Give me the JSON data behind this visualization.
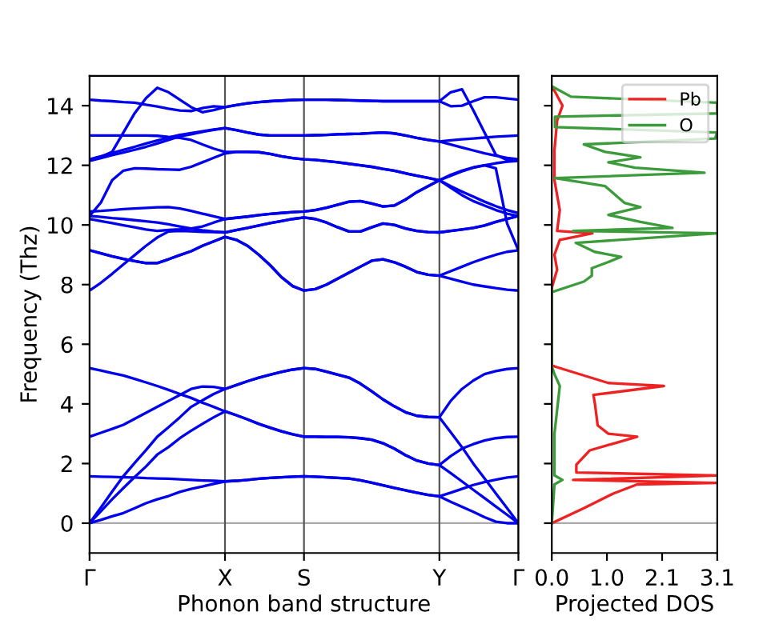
{
  "chart_data": [
    {
      "type": "line",
      "xlabel": "Phonon band structure",
      "ylabel": "Frequency (Thz)",
      "categories": [
        "Γ",
        null,
        null,
        null,
        null,
        null,
        null,
        null,
        null,
        null,
        null,
        null,
        "X",
        null,
        null,
        null,
        null,
        null,
        null,
        "S",
        null,
        null,
        null,
        null,
        null,
        null,
        null,
        null,
        null,
        null,
        null,
        "Y",
        null,
        null,
        null,
        null,
        null,
        null,
        "Γ"
      ],
      "ylim": [
        -1,
        15
      ],
      "yticks": [
        0,
        2,
        4,
        6,
        8,
        10,
        12,
        14
      ],
      "grid": "x",
      "line_style": "solid",
      "ref_lines": [
        {
          "axis": "y",
          "value": 0,
          "color": "#aaaaaa"
        }
      ],
      "series": [
        {
          "color": "#0000ee",
          "values": [
            0,
            0.11,
            0.23,
            0.34,
            0.5,
            0.67,
            0.8,
            0.91,
            1.05,
            1.15,
            1.23,
            1.32,
            1.4,
            1.42,
            1.45,
            1.49,
            1.52,
            1.54,
            1.56,
            1.57,
            1.56,
            1.54,
            1.52,
            1.5,
            1.44,
            1.36,
            1.27,
            1.18,
            1.1,
            1.02,
            0.95,
            0.9,
            0.72,
            0.55,
            0.38,
            0.2,
            0.05,
            0,
            0
          ]
        },
        {
          "color": "#0000ee",
          "values": [
            1.57,
            1.56,
            1.55,
            1.54,
            1.53,
            1.51,
            1.5,
            1.49,
            1.47,
            1.45,
            1.43,
            1.42,
            1.4,
            1.42,
            1.45,
            1.49,
            1.52,
            1.54,
            1.56,
            1.57,
            1.56,
            1.54,
            1.52,
            1.5,
            1.44,
            1.36,
            1.27,
            1.18,
            1.1,
            1.02,
            0.95,
            0.9,
            1.02,
            1.15,
            1.28,
            1.38,
            1.46,
            1.53,
            1.57
          ]
        },
        {
          "color": "#0000ee",
          "values": [
            0,
            0.4,
            0.8,
            1.18,
            1.55,
            1.9,
            2.3,
            2.55,
            2.85,
            3.1,
            3.33,
            3.55,
            3.75,
            3.62,
            3.48,
            3.33,
            3.2,
            3.08,
            2.98,
            2.9,
            2.9,
            2.89,
            2.89,
            2.88,
            2.85,
            2.8,
            2.68,
            2.5,
            2.28,
            2.1,
            2.0,
            1.95,
            1.68,
            1.4,
            1.12,
            0.84,
            0.56,
            0.28,
            0
          ]
        },
        {
          "color": "#0000ee",
          "values": [
            5.2,
            5.12,
            5.03,
            4.95,
            4.84,
            4.72,
            4.6,
            4.47,
            4.33,
            4.2,
            4.04,
            3.9,
            3.75,
            3.62,
            3.48,
            3.33,
            3.2,
            3.08,
            2.98,
            2.9,
            2.9,
            2.89,
            2.89,
            2.88,
            2.85,
            2.8,
            2.68,
            2.5,
            2.28,
            2.1,
            2.0,
            1.95,
            2.25,
            2.5,
            2.65,
            2.77,
            2.85,
            2.89,
            2.9
          ]
        },
        {
          "color": "#0000ee",
          "values": [
            0,
            0.52,
            1.06,
            1.58,
            2.02,
            2.45,
            2.9,
            3.22,
            3.55,
            3.9,
            4.12,
            4.33,
            4.5,
            4.63,
            4.76,
            4.88,
            4.98,
            5.07,
            5.15,
            5.2,
            5.17,
            5.08,
            4.98,
            4.88,
            4.68,
            4.42,
            4.15,
            3.92,
            3.72,
            3.6,
            3.56,
            3.55,
            3.05,
            2.55,
            2.0,
            1.5,
            1.0,
            0.5,
            0
          ]
        },
        {
          "color": "#0000ee",
          "values": [
            2.9,
            3.03,
            3.16,
            3.3,
            3.5,
            3.7,
            3.9,
            4.1,
            4.3,
            4.5,
            4.58,
            4.57,
            4.5,
            4.63,
            4.76,
            4.88,
            4.98,
            5.07,
            5.15,
            5.2,
            5.17,
            5.08,
            4.98,
            4.88,
            4.68,
            4.42,
            4.15,
            3.92,
            3.72,
            3.6,
            3.56,
            3.55,
            4.1,
            4.5,
            4.78,
            5.0,
            5.1,
            5.17,
            5.2
          ]
        },
        {
          "color": "#0000ee",
          "values": [
            7.8,
            8.06,
            8.36,
            8.68,
            8.99,
            9.3,
            9.58,
            9.78,
            9.8,
            9.79,
            9.77,
            9.76,
            9.75,
            9.83,
            9.9,
            9.98,
            10.06,
            10.13,
            10.2,
            10.25,
            10.2,
            10.08,
            9.92,
            9.78,
            9.78,
            9.92,
            10.05,
            10.0,
            9.88,
            9.8,
            9.76,
            9.75,
            9.8,
            9.85,
            9.9,
            9.98,
            10.1,
            10.2,
            10.3
          ]
        },
        {
          "color": "#0000ee",
          "values": [
            10.3,
            10.27,
            10.23,
            10.2,
            10.16,
            10.12,
            10.08,
            10.02,
            9.95,
            9.88,
            9.82,
            9.78,
            9.75,
            9.83,
            9.9,
            9.98,
            10.06,
            10.13,
            10.2,
            10.25,
            10.2,
            10.08,
            9.92,
            9.78,
            9.78,
            9.92,
            10.05,
            10.0,
            9.88,
            9.8,
            9.76,
            9.75,
            9.8,
            9.85,
            9.9,
            9.98,
            10.1,
            10.2,
            10.3
          ]
        },
        {
          "color": "#0000ee",
          "values": [
            9.15,
            9.05,
            8.95,
            8.86,
            8.79,
            8.72,
            8.72,
            8.85,
            8.99,
            9.12,
            9.3,
            9.45,
            9.6,
            9.5,
            9.3,
            9.0,
            8.65,
            8.25,
            7.95,
            7.8,
            7.85,
            8.0,
            8.2,
            8.4,
            8.6,
            8.8,
            8.85,
            8.75,
            8.6,
            8.42,
            8.33,
            8.3,
            8.2,
            8.1,
            8.0,
            7.94,
            7.88,
            7.83,
            7.8
          ]
        },
        {
          "color": "#0000ee",
          "values": [
            9.15,
            9.05,
            8.95,
            8.86,
            8.79,
            8.72,
            8.72,
            8.85,
            8.99,
            9.12,
            9.3,
            9.45,
            9.6,
            9.5,
            9.3,
            9.0,
            8.65,
            8.25,
            7.95,
            7.8,
            7.85,
            8.0,
            8.2,
            8.4,
            8.6,
            8.8,
            8.85,
            8.75,
            8.6,
            8.42,
            8.33,
            8.3,
            8.45,
            8.6,
            8.75,
            8.88,
            9.0,
            9.1,
            9.15
          ]
        },
        {
          "color": "#0000ee",
          "values": [
            10.2,
            10.13,
            10.06,
            9.99,
            9.92,
            9.85,
            9.8,
            9.83,
            9.85,
            9.88,
            9.95,
            10.08,
            10.2,
            10.24,
            10.28,
            10.33,
            10.37,
            10.4,
            10.43,
            10.45,
            10.5,
            10.58,
            10.68,
            10.78,
            10.8,
            10.72,
            10.62,
            10.65,
            10.85,
            11.1,
            11.3,
            11.5,
            11.3,
            11.12,
            10.95,
            10.78,
            10.63,
            10.5,
            10.4
          ]
        },
        {
          "color": "#0000ee",
          "values": [
            10.45,
            10.47,
            10.5,
            10.53,
            10.55,
            10.57,
            10.59,
            10.6,
            10.55,
            10.47,
            10.38,
            10.29,
            10.2,
            10.24,
            10.28,
            10.33,
            10.37,
            10.4,
            10.43,
            10.45,
            10.5,
            10.58,
            10.68,
            10.78,
            10.8,
            10.72,
            10.62,
            10.65,
            10.85,
            11.1,
            11.3,
            11.5,
            11.25,
            11.0,
            10.8,
            10.65,
            10.5,
            10.38,
            10.3
          ]
        },
        {
          "color": "#0000ee",
          "values": [
            10.3,
            10.75,
            11.5,
            11.82,
            11.9,
            11.89,
            11.87,
            11.86,
            11.85,
            11.95,
            12.1,
            12.25,
            12.4,
            12.45,
            12.45,
            12.44,
            12.38,
            12.3,
            12.24,
            12.2,
            12.18,
            12.14,
            12.1,
            12.05,
            12.0,
            11.95,
            11.88,
            11.82,
            11.73,
            11.65,
            11.58,
            11.5,
            11.65,
            11.8,
            11.92,
            12.0,
            11.9,
            10.05,
            9.15
          ]
        },
        {
          "color": "#0000ee",
          "values": [
            13.0,
            13.0,
            13.0,
            13.0,
            13.0,
            13.0,
            12.99,
            12.95,
            12.92,
            12.85,
            12.7,
            12.56,
            12.45,
            12.45,
            12.45,
            12.44,
            12.38,
            12.3,
            12.24,
            12.2,
            12.18,
            12.14,
            12.1,
            12.05,
            12.0,
            11.95,
            11.88,
            11.82,
            11.73,
            11.65,
            11.58,
            11.5,
            11.68,
            11.82,
            11.93,
            12.0,
            12.07,
            12.12,
            12.15
          ]
        },
        {
          "color": "#0000ee",
          "values": [
            12.2,
            12.3,
            12.41,
            12.52,
            12.62,
            12.73,
            12.83,
            12.93,
            13.02,
            13.08,
            13.14,
            13.2,
            13.25,
            13.18,
            13.1,
            13.03,
            13.0,
            13.0,
            13.0,
            13.0,
            13.01,
            13.02,
            13.04,
            13.05,
            13.06,
            13.08,
            13.1,
            13.07,
            13.0,
            12.92,
            12.85,
            12.8,
            12.7,
            12.6,
            12.5,
            12.4,
            12.32,
            12.25,
            12.2
          ]
        },
        {
          "color": "#0000ee",
          "values": [
            12.15,
            12.24,
            12.34,
            12.43,
            12.52,
            12.62,
            12.73,
            12.85,
            12.97,
            13.04,
            13.12,
            13.19,
            13.25,
            13.18,
            13.1,
            13.03,
            13.0,
            13.0,
            13.0,
            13.0,
            13.01,
            13.02,
            13.04,
            13.05,
            13.06,
            13.08,
            13.1,
            13.07,
            13.0,
            12.92,
            12.85,
            12.8,
            12.84,
            12.87,
            12.9,
            12.93,
            12.96,
            12.98,
            13.0
          ]
        },
        {
          "color": "#0000ee",
          "values": [
            12.15,
            12.28,
            12.45,
            13.1,
            13.75,
            14.25,
            14.6,
            14.45,
            14.2,
            13.95,
            13.78,
            13.85,
            13.95,
            14.02,
            14.08,
            14.12,
            14.15,
            14.17,
            14.19,
            14.2,
            14.2,
            14.2,
            14.19,
            14.18,
            14.17,
            14.16,
            14.15,
            14.15,
            14.15,
            14.15,
            14.15,
            14.15,
            14.45,
            14.55,
            13.85,
            13.1,
            12.35,
            12.18,
            12.15
          ]
        },
        {
          "color": "#0000ee",
          "values": [
            14.2,
            14.17,
            14.15,
            14.12,
            14.1,
            14.03,
            13.97,
            13.9,
            13.84,
            13.82,
            13.92,
            13.98,
            13.95,
            14.02,
            14.08,
            14.12,
            14.15,
            14.17,
            14.19,
            14.2,
            14.2,
            14.2,
            14.19,
            14.18,
            14.17,
            14.16,
            14.15,
            14.15,
            14.15,
            14.15,
            14.15,
            14.15,
            13.98,
            14.0,
            14.15,
            14.28,
            14.28,
            14.24,
            14.2
          ]
        }
      ]
    },
    {
      "type": "line",
      "orientation": "horizontal",
      "xlabel": "Projected DOS",
      "xlim": [
        0,
        3.1
      ],
      "xticks": [
        {
          "value": 0,
          "label": "0.0"
        },
        {
          "value": 1.033,
          "label": "1.0"
        },
        {
          "value": 2.067,
          "label": "2.1"
        },
        {
          "value": 3.1,
          "label": "3.1"
        }
      ],
      "ylim": [
        -1,
        15
      ],
      "yticks": [
        0,
        2,
        4,
        6,
        8,
        10,
        12,
        14
      ],
      "tick_labels": "x",
      "legend": "top right",
      "line_style": "solid",
      "ref_lines": [
        {
          "axis": "y",
          "value": 0,
          "color": "#aaaaaa"
        }
      ],
      "series": [
        {
          "name": "Pb",
          "color": "#ee2222",
          "x": [
            0,
            0.5,
            1.0,
            1.3,
            1.35,
            1.45,
            1.6,
            1.7,
            1.96,
            2.44,
            2.9,
            3.0,
            3.28,
            3.98,
            4.3,
            4.6,
            4.7,
            5.25,
            5.3,
            7.9,
            8.5,
            9.0,
            9.5,
            9.72,
            9.8,
            10.5,
            11.5,
            12.5,
            13.5,
            14.0,
            14.5,
            14.6
          ],
          "values": [
            0,
            0.6,
            1.16,
            1.6,
            3.1,
            0.4,
            3.1,
            0.46,
            0.46,
            0.71,
            1.6,
            1.06,
            0.86,
            0.81,
            0.78,
            2.1,
            1.06,
            0.06,
            0,
            0,
            0.1,
            0.05,
            0.15,
            0.76,
            0.1,
            0.15,
            0.05,
            0.05,
            0.1,
            0.2,
            0.05,
            0
          ]
        },
        {
          "name": "O",
          "color": "#3c9c3c",
          "x": [
            0,
            1.3,
            1.45,
            1.6,
            3.0,
            4.6,
            5.0,
            5.25,
            7.75,
            8.1,
            8.3,
            8.55,
            8.75,
            8.93,
            9.1,
            9.4,
            9.72,
            9.8,
            9.9,
            10.1,
            10.34,
            10.6,
            10.74,
            11.3,
            11.57,
            11.75,
            11.92,
            12.1,
            12.27,
            12.45,
            12.7,
            12.9,
            13.1,
            13.28,
            13.63,
            13.74,
            14.1,
            14.3,
            14.65
          ],
          "values": [
            0,
            0.05,
            0.2,
            0.05,
            0.05,
            0.15,
            0.05,
            0,
            0,
            0.6,
            0.75,
            0.75,
            1.05,
            1.3,
            0.8,
            0.45,
            3.1,
            0.4,
            2.26,
            1.66,
            1.06,
            1.66,
            1.36,
            1.0,
            0.06,
            2.86,
            1.56,
            1.06,
            1.66,
            1.0,
            0.6,
            3.06,
            3.1,
            0.06,
            0.06,
            3.1,
            3.1,
            0.36,
            0
          ]
        }
      ]
    }
  ]
}
